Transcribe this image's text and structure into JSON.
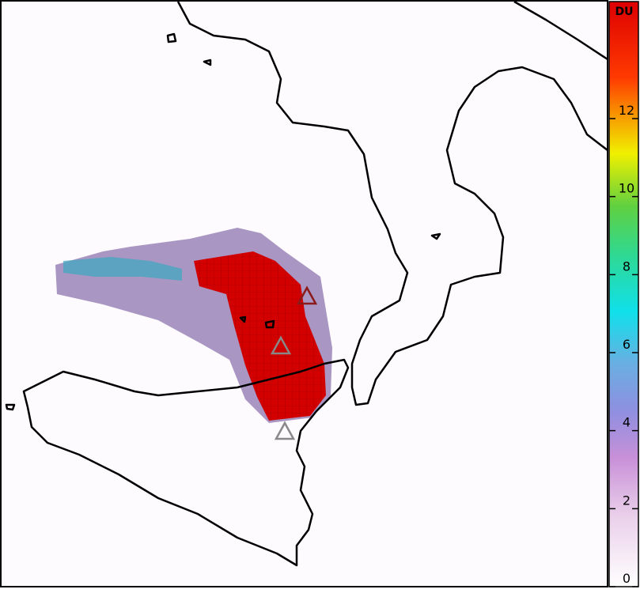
{
  "colorbar": {
    "title": "DU",
    "range": [
      0,
      15
    ],
    "ticks": [
      0,
      2,
      4,
      6,
      8,
      10,
      12
    ]
  }
}
